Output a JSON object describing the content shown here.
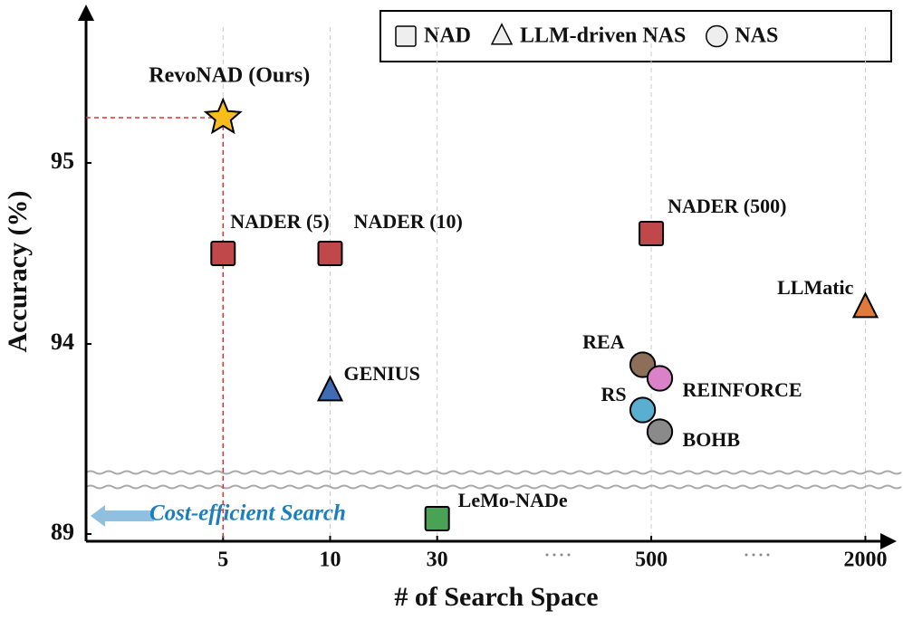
{
  "chart_data": {
    "type": "scatter",
    "x_label": "# of Search Space",
    "y_label": "Accuracy (%)",
    "xlim": [
      -0.28,
      7.25
    ],
    "xticks": [
      {
        "value": 1,
        "label": "5"
      },
      {
        "value": 2,
        "label": "10"
      },
      {
        "value": 3,
        "label": "30"
      },
      {
        "value": 5,
        "label": "500"
      },
      {
        "value": 7,
        "label": "2000"
      }
    ],
    "ylim": [
      88.96,
      95.85
    ],
    "y_break": [
      89.3,
      93.25
    ],
    "yticks": [
      89,
      94,
      95
    ],
    "grid": true,
    "highlight": {
      "label": "RevoNAD (Ours)",
      "x": 1,
      "y": 95.25,
      "color": "#f9be1e",
      "marker": "star"
    },
    "series": [
      {
        "name": "NAD",
        "marker": "square",
        "legend_color": "#eeeeee",
        "labels": [
          "NADER (5)",
          "NADER (10)",
          "NADER (500)",
          "LeMo-NADe"
        ],
        "x": [
          1,
          2,
          5,
          3
        ],
        "values": [
          94.5,
          94.5,
          94.61,
          89.085
        ],
        "colors": [
          "#c0474a",
          "#c0474a",
          "#c0474a",
          "#4aa354"
        ]
      },
      {
        "name": "LLM-driven NAS",
        "marker": "triangle",
        "legend_color": "#eeeeee",
        "labels": [
          "GENIUS",
          "LLMatic"
        ],
        "x": [
          2,
          7
        ],
        "values": [
          93.74,
          94.2
        ],
        "colors": [
          "#3f6db5",
          "#e07a3c"
        ]
      },
      {
        "name": "NAS",
        "marker": "circle",
        "legend_color": "#eeeeee",
        "labels": [
          "REA",
          "REINFORCE",
          "RS",
          "BOHB"
        ],
        "x": [
          4.92,
          5.08,
          4.92,
          5.08
        ],
        "values": [
          93.885,
          93.81,
          93.635,
          93.515
        ],
        "colors": [
          "#8d6e58",
          "#d982c8",
          "#5aaed0",
          "#8a8a8a"
        ]
      }
    ],
    "annotation": "Cost-efficient Search"
  }
}
